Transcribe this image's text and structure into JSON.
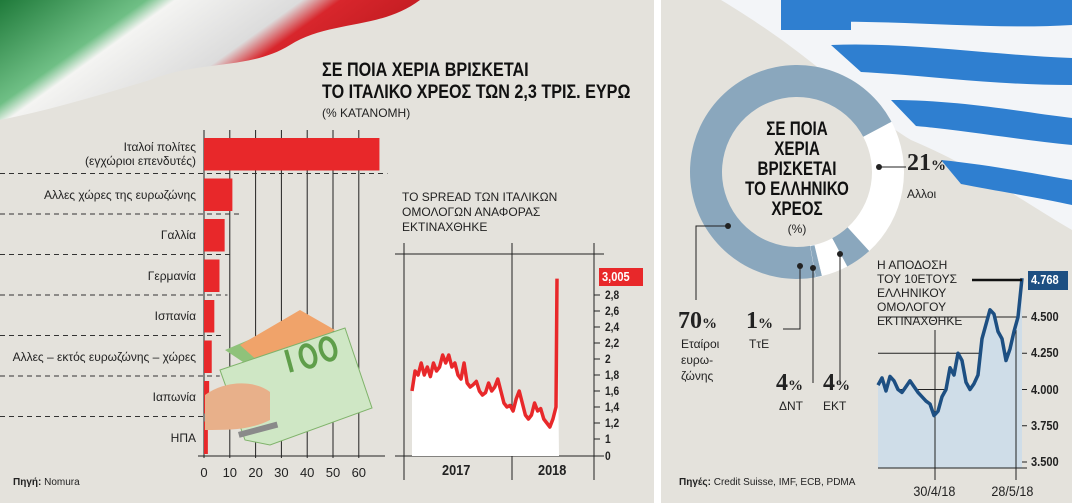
{
  "left": {
    "title_line1": "ΣΕ ΠΟΙΑ ΧΕΡΙΑ ΒΡΙΣΚΕΤΑΙ",
    "title_line2": "ΤΟ ΙΤΑΛΙΚΟ ΧΡΕΟΣ ΤΩΝ 2,3 ΤΡΙΣ. ΕΥΡΩ",
    "subtitle": "(% ΚΑΤΑΝΟΜΗ)",
    "source_label": "Πηγή:",
    "source": "Nomura"
  },
  "right": {
    "source_label": "Πηγές:",
    "source": "Credit Suisse, IMF, ECB, PDMA"
  },
  "colors": {
    "red": "#e8282a",
    "blue": "#1d4f82",
    "donut_blue": "#8aa7bd",
    "bg": "#e4e2dc"
  },
  "chart_data": [
    {
      "type": "bar",
      "orientation": "horizontal",
      "categories": [
        "Ιταλοί πολίτες (εγχώριοι επενδυτές)",
        "Αλλες χώρες της ευρωζώνης",
        "Γαλλία",
        "Γερμανία",
        "Ισπανία",
        "Αλλες – εκτός ευρωζώνης – χώρες",
        "Ιαπωνία",
        "ΗΠΑ"
      ],
      "category_lines": [
        [
          "Ιταλοί πολίτες",
          "(εγχώριοι επενδυτές)"
        ],
        [
          "Αλλες χώρες της ευρωζώνης"
        ],
        [
          "Γαλλία"
        ],
        [
          "Γερμανία"
        ],
        [
          "Ισπανία"
        ],
        [
          "Αλλες – εκτός ευρωζώνης – χώρες"
        ],
        [
          "Ιαπωνία"
        ],
        [
          "ΗΠΑ"
        ]
      ],
      "values": [
        68,
        11,
        8,
        6,
        4,
        3,
        2,
        1.5
      ],
      "xlim": [
        0,
        68
      ],
      "xticks": [
        "0",
        "10",
        "20",
        "30",
        "40",
        "50",
        "60"
      ],
      "grid": true
    },
    {
      "type": "line",
      "title_lines": [
        "ΤΟ SPREAD ΤΩΝ ΙΤΑΛΙΚΩΝ",
        "ΟΜΟΛΟΓΩΝ ΑΝΑΦΟΡΑΣ",
        "ΕΚΤΙΝΑΧΘΗΚΕ"
      ],
      "x_labels": [
        "2017",
        "2018"
      ],
      "yticks": [
        "0",
        "1",
        "1,2",
        "1,4",
        "1,6",
        "1,8",
        "2",
        "2,2",
        "2,4",
        "2,6",
        "2,8"
      ],
      "last_value_label": "3,005",
      "values": [
        1.6,
        1.85,
        1.8,
        1.95,
        1.8,
        1.9,
        1.78,
        1.95,
        1.85,
        1.9,
        2.05,
        1.95,
        2.05,
        1.9,
        1.95,
        1.8,
        1.75,
        1.95,
        1.7,
        1.65,
        1.68,
        1.72,
        1.6,
        1.55,
        1.58,
        1.7,
        1.6,
        1.65,
        1.75,
        1.6,
        1.45,
        1.4,
        1.42,
        1.35,
        1.5,
        1.6,
        1.45,
        1.3,
        1.25,
        1.3,
        1.45,
        1.35,
        1.38,
        1.25,
        1.2,
        1.15,
        1.25,
        1.4,
        3.005
      ]
    },
    {
      "type": "pie",
      "donut": true,
      "center_title_lines": [
        "ΣΕ ΠΟΙΑ",
        "ΧΕΡΙΑ",
        "ΒΡΙΣΚΕΤΑΙ",
        "ΤΟ ΕΛΛΗΝΙΚΟ",
        "ΧΡΕΟΣ"
      ],
      "unit": "(%)",
      "slices": [
        {
          "label": "Αλλοι",
          "value": 21,
          "label_lines": [
            "Αλλοι"
          ]
        },
        {
          "label": "ΕΚΤ",
          "value": 4,
          "label_lines": [
            "ΕΚΤ"
          ]
        },
        {
          "label": "ΔΝΤ",
          "value": 4,
          "label_lines": [
            "ΔΝΤ"
          ]
        },
        {
          "label": "ΤτΕ",
          "value": 1,
          "label_lines": [
            "ΤτΕ"
          ]
        },
        {
          "label": "Εταίροι ευρωζώνης",
          "value": 70,
          "label_lines": [
            "Εταίροι",
            "ευρω-",
            "ζώνης"
          ]
        }
      ]
    },
    {
      "type": "area",
      "title_lines": [
        "Η ΑΠΟΔΟΣΗ",
        "ΤΟΥ 10ΕΤΟΥΣ",
        "ΕΛΛΗΝΙΚΟΥ",
        "ΟΜΟΛΟΓΟΥ",
        "ΕΚΤΙΝΑΧΘΗΚΕ"
      ],
      "x_labels": [
        "30/4/18",
        "28/5/18"
      ],
      "yticks": [
        "3.500",
        "3.750",
        "4.000",
        "4.250",
        "4.500"
      ],
      "ylim": [
        3.5,
        4.85
      ],
      "last_value_label": "4.768",
      "values": [
        4.03,
        4.08,
        3.99,
        4.09,
        4.06,
        4.0,
        3.98,
        4.02,
        4.06,
        4.02,
        3.98,
        3.95,
        3.92,
        3.9,
        3.82,
        3.85,
        3.95,
        4.0,
        4.15,
        4.1,
        4.25,
        4.2,
        4.05,
        4.0,
        4.04,
        4.1,
        4.35,
        4.45,
        4.55,
        4.52,
        4.4,
        4.35,
        4.2,
        4.28,
        4.4,
        4.5,
        4.768
      ]
    }
  ]
}
